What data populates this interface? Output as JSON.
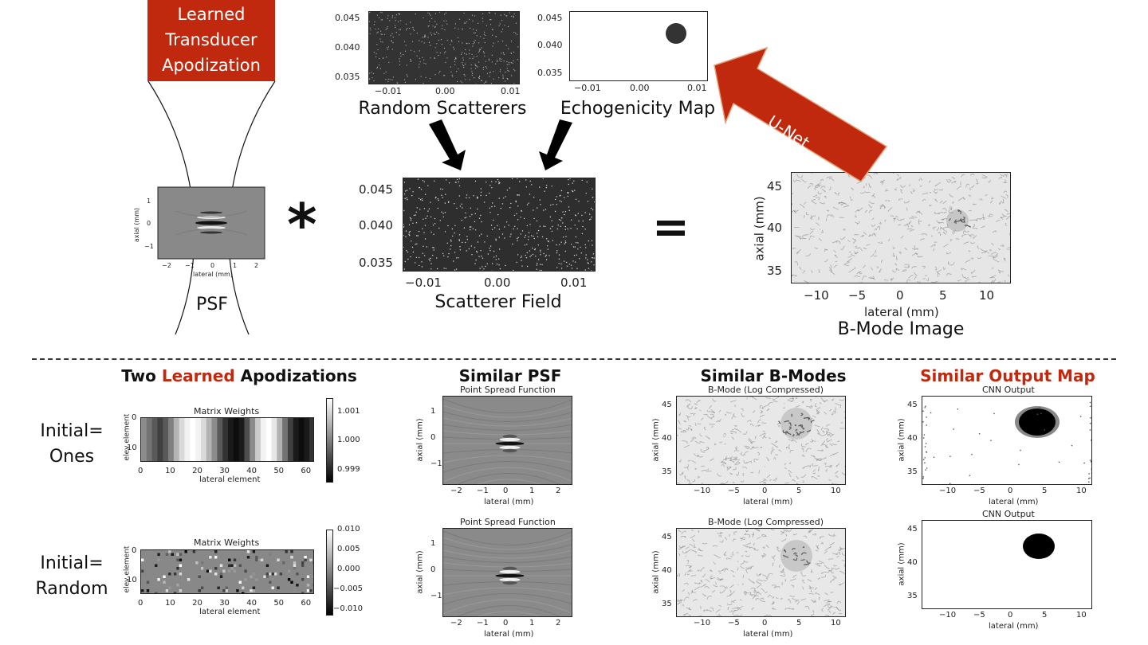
{
  "banner": {
    "label": "Learned Transducer Apodization",
    "color": "#c0290e"
  },
  "top": {
    "psf_caption": "PSF",
    "psf_xlabel": "lateral (mm)",
    "psf_ylabel": "axial (mm)",
    "psf_xticks": [
      "−2",
      "−1",
      "0",
      "1",
      "2"
    ],
    "psf_yticks": [
      "1",
      "0",
      "−1"
    ],
    "random_caption": "Random Scatterers",
    "echo_caption": "Echogenicity Map",
    "field_caption": "Scatterer Field",
    "bmode_caption": "B-Mode Image",
    "bmode_xlabel": "lateral (mm)",
    "bmode_ylabel": "axial (mm)",
    "bmode_xticks": [
      "−10",
      "−5",
      "0",
      "5",
      "10"
    ],
    "bmode_yticks": [
      "45",
      "40",
      "35"
    ],
    "small_yticks": [
      "0.045",
      "0.040",
      "0.035"
    ],
    "small_xticks": [
      "−0.01",
      "0.00",
      "0.01"
    ],
    "conv_symbol": "*",
    "eq_symbol": "=",
    "unet_label": "U-Net"
  },
  "bottom": {
    "headers": {
      "apod_1": "Two ",
      "apod_2": "Learned",
      "apod_3": " Apodizations",
      "psf": "Similar PSF",
      "bmode": "Similar B-Modes",
      "output": "Similar Output Map"
    },
    "rows": [
      {
        "label_1": "Initial=",
        "label_2": "Ones"
      },
      {
        "label_1": "Initial=",
        "label_2": "Random"
      }
    ],
    "matrix_title": "Matrix Weights",
    "matrix_xlabel": "lateral element",
    "matrix_ylabel": "elev element",
    "matrix_xticks": [
      "0",
      "10",
      "20",
      "30",
      "40",
      "50",
      "60"
    ],
    "matrix_yticks": [
      "0",
      "10"
    ],
    "cbar_ones": [
      "1.001",
      "1.000",
      "0.999"
    ],
    "cbar_random": [
      "0.010",
      "0.005",
      "0.000",
      "−0.005",
      "−0.010"
    ],
    "psf_title": "Point Spread Function",
    "psf_xlabel": "lateral (mm)",
    "psf_ylabel": "axial (mm)",
    "psf_xticks": [
      "−2",
      "−1",
      "0",
      "1",
      "2"
    ],
    "psf_yticks": [
      "1",
      "0",
      "−1"
    ],
    "bmode_title": "B-Mode (Log Compressed)",
    "cnn_title": "CNN Output",
    "xlabel_mm": "lateral (mm)",
    "ylabel_mm": "axial (mm)",
    "xticks_mm": [
      "−10",
      "−5",
      "0",
      "5",
      "10"
    ],
    "yticks_mm": [
      "45",
      "40",
      "35"
    ]
  }
}
